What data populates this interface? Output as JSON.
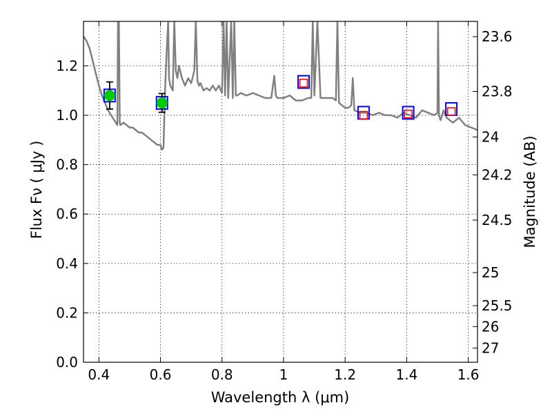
{
  "chart_data": {
    "type": "scatter",
    "title": "",
    "xlabel": "Wavelength  λ (μm)",
    "ylabel": "Flux  Fν ( μJy )",
    "ylabel_right": "Magnitude (AB)",
    "xlim": [
      0.35,
      1.63
    ],
    "ylim": [
      0.0,
      1.38
    ],
    "grid": true,
    "x_ticks": [
      0.4,
      0.6,
      0.8,
      1.0,
      1.2,
      1.4,
      1.6
    ],
    "x_tick_labels": [
      "0.4",
      "0.6",
      "0.8",
      "1",
      "1.2",
      "1.4",
      "1.6"
    ],
    "y_ticks": [
      0.0,
      0.2,
      0.4,
      0.6,
      0.8,
      1.0,
      1.2
    ],
    "y_tick_labels": [
      "0.0",
      "0.2",
      "0.4",
      "0.6",
      "0.8",
      "1.0",
      "1.2"
    ],
    "right_ticks": [
      {
        "label": "23.6",
        "mag": 23.6
      },
      {
        "label": "23.8",
        "mag": 23.8
      },
      {
        "label": "24",
        "mag": 24.0
      },
      {
        "label": "24.2",
        "mag": 24.2
      },
      {
        "label": "24.5",
        "mag": 24.5
      },
      {
        "label": "25",
        "mag": 25.0
      },
      {
        "label": "25.5",
        "mag": 25.5
      },
      {
        "label": "26",
        "mag": 26.0
      },
      {
        "label": "27",
        "mag": 27.0
      }
    ],
    "series": [
      {
        "kind": "line",
        "color": "#808080",
        "x": [
          0.35,
          0.36,
          0.37,
          0.38,
          0.39,
          0.4,
          0.41,
          0.42,
          0.43,
          0.44,
          0.45,
          0.46,
          0.462,
          0.465,
          0.468,
          0.47,
          0.48,
          0.49,
          0.5,
          0.51,
          0.52,
          0.53,
          0.54,
          0.55,
          0.56,
          0.57,
          0.58,
          0.59,
          0.6,
          0.605,
          0.61,
          0.615,
          0.62,
          0.625,
          0.628,
          0.632,
          0.64,
          0.645,
          0.65,
          0.655,
          0.66,
          0.67,
          0.68,
          0.69,
          0.7,
          0.71,
          0.715,
          0.72,
          0.725,
          0.73,
          0.74,
          0.75,
          0.76,
          0.77,
          0.78,
          0.79,
          0.8,
          0.805,
          0.81,
          0.815,
          0.82,
          0.83,
          0.835,
          0.84,
          0.845,
          0.85,
          0.86,
          0.88,
          0.9,
          0.92,
          0.94,
          0.96,
          0.97,
          0.975,
          0.98,
          1.0,
          1.02,
          1.04,
          1.06,
          1.08,
          1.09,
          1.095,
          1.1,
          1.11,
          1.12,
          1.14,
          1.16,
          1.17,
          1.175,
          1.18,
          1.19,
          1.2,
          1.21,
          1.22,
          1.225,
          1.23,
          1.25,
          1.27,
          1.29,
          1.31,
          1.33,
          1.35,
          1.37,
          1.39,
          1.41,
          1.43,
          1.45,
          1.47,
          1.49,
          1.5,
          1.502,
          1.505,
          1.51,
          1.52,
          1.53,
          1.55,
          1.57,
          1.59,
          1.61,
          1.63
        ],
        "y": [
          1.32,
          1.3,
          1.27,
          1.22,
          1.17,
          1.12,
          1.08,
          1.05,
          1.02,
          1.0,
          0.98,
          0.96,
          1.38,
          1.38,
          0.97,
          0.96,
          0.97,
          0.96,
          0.95,
          0.95,
          0.94,
          0.93,
          0.93,
          0.92,
          0.91,
          0.9,
          0.89,
          0.88,
          0.88,
          0.86,
          0.87,
          1.1,
          1.25,
          1.38,
          1.15,
          1.12,
          1.1,
          1.38,
          1.18,
          1.15,
          1.2,
          1.15,
          1.12,
          1.15,
          1.13,
          1.18,
          1.38,
          1.14,
          1.12,
          1.13,
          1.1,
          1.11,
          1.1,
          1.12,
          1.1,
          1.12,
          1.09,
          1.38,
          1.08,
          1.38,
          1.07,
          1.38,
          1.07,
          1.38,
          1.08,
          1.08,
          1.09,
          1.08,
          1.09,
          1.08,
          1.07,
          1.07,
          1.16,
          1.08,
          1.07,
          1.07,
          1.08,
          1.06,
          1.06,
          1.07,
          1.07,
          1.38,
          1.08,
          1.38,
          1.07,
          1.07,
          1.07,
          1.06,
          1.38,
          1.05,
          1.04,
          1.03,
          1.03,
          1.04,
          1.15,
          1.02,
          1.01,
          1.01,
          1.0,
          1.01,
          1.0,
          1.0,
          0.99,
          1.01,
          1.0,
          0.99,
          1.02,
          1.01,
          1.0,
          1.01,
          1.38,
          1.0,
          0.98,
          1.02,
          0.99,
          0.97,
          0.99,
          0.96,
          0.95,
          0.94
        ]
      },
      {
        "kind": "model-boxes",
        "edge_color": "#0000ff",
        "x": [
          0.435,
          0.605,
          1.065,
          1.26,
          1.405,
          1.545
        ],
        "y": [
          1.08,
          1.05,
          1.135,
          1.01,
          1.01,
          1.025
        ]
      },
      {
        "kind": "upper-limit-markers",
        "edge_color": "#ff0000",
        "x": [
          1.065,
          1.26,
          1.405,
          1.545
        ],
        "y": [
          1.13,
          1.0,
          1.005,
          1.015
        ]
      },
      {
        "kind": "detections",
        "color": "#00cc00",
        "x": [
          0.435,
          0.605
        ],
        "y": [
          1.08,
          1.05
        ],
        "yerr": [
          0.055,
          0.038
        ]
      }
    ]
  }
}
